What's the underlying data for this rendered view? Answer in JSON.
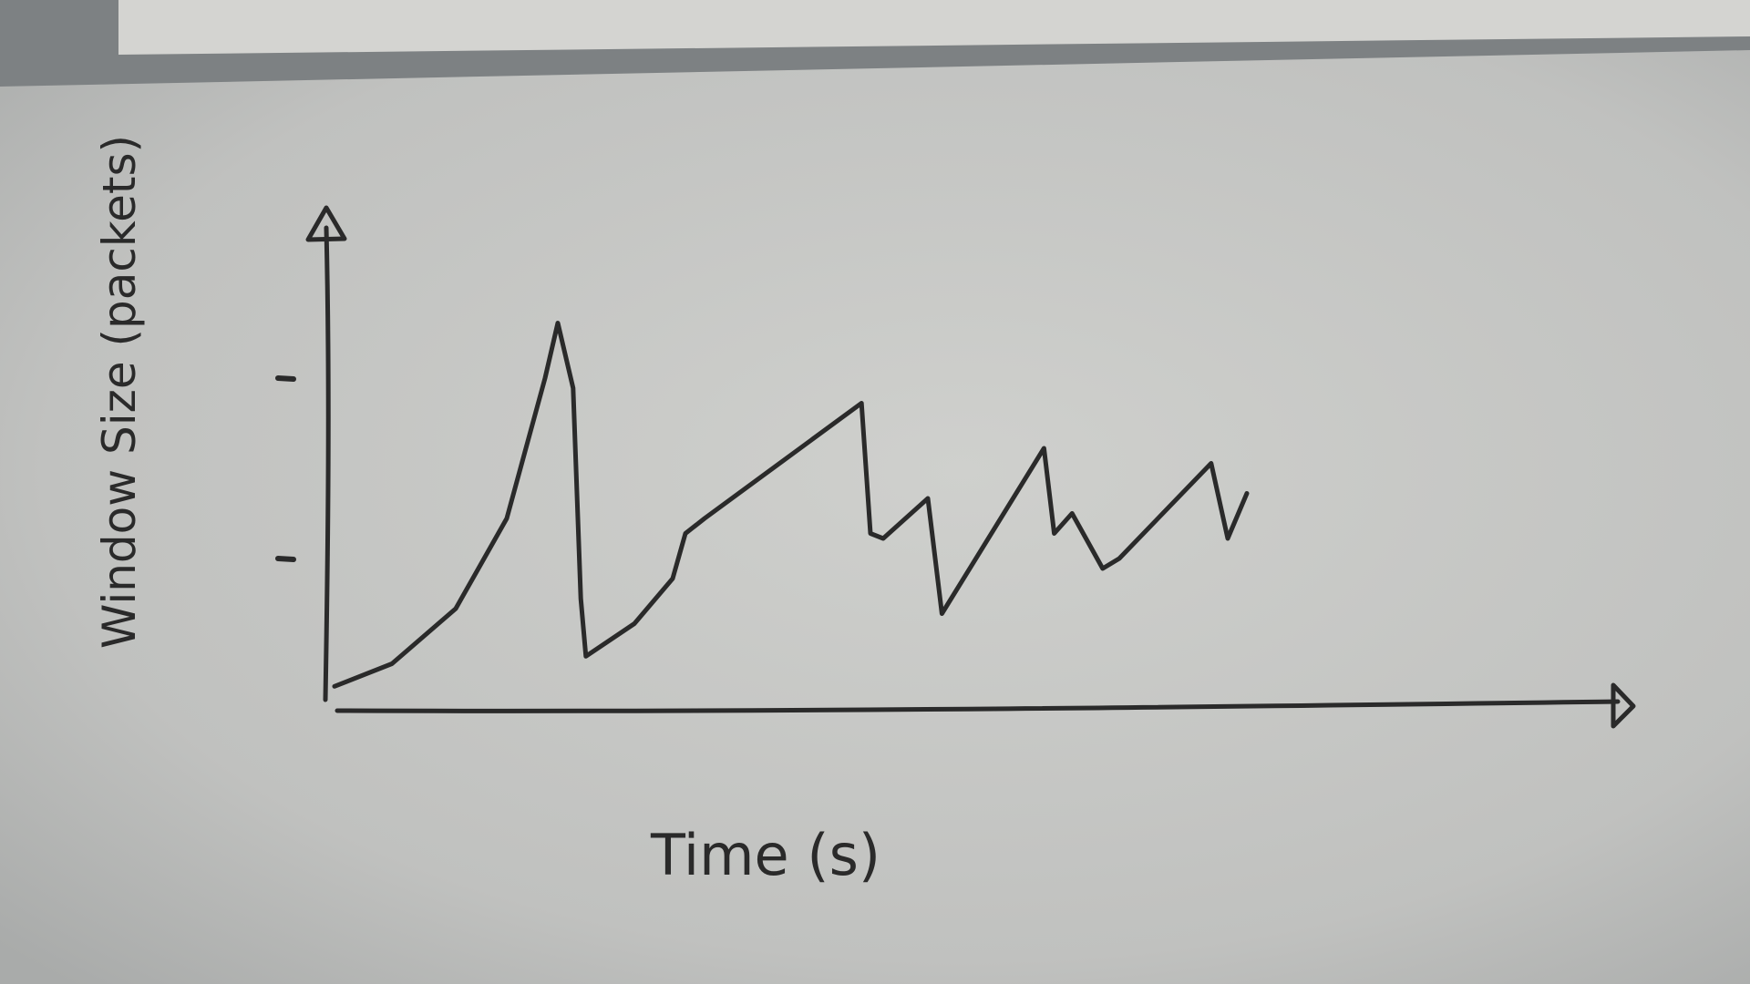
{
  "chart_data": {
    "type": "line",
    "title": "",
    "xlabel": "Time (s)",
    "ylabel": "Window Size (packets)",
    "xlim": [
      0,
      100
    ],
    "ylim": [
      0,
      100
    ],
    "grid": false,
    "legend": "none",
    "y_ticks": [
      {
        "value": 30,
        "label": ""
      },
      {
        "value": 66,
        "label": ""
      }
    ],
    "series": [
      {
        "name": "",
        "style": "hand-drawn",
        "color": "#2a2a2a",
        "x": [
          0.5,
          5,
          10,
          14,
          17,
          18,
          19.2,
          19.8,
          20.2,
          24,
          27,
          28,
          29.5,
          41.8,
          42.5,
          43.5,
          47,
          48.1,
          56.1,
          56.9,
          58.3,
          60.7,
          62,
          69.2,
          70.5,
          72
        ],
        "y": [
          4.5,
          9,
          20,
          38,
          66,
          77,
          64,
          22,
          10.5,
          17,
          26,
          35,
          38,
          61,
          35,
          34,
          42,
          19,
          52,
          35,
          39,
          28,
          30,
          49,
          34,
          43
        ]
      }
    ]
  },
  "colors": {
    "paper": "#c4c5c3",
    "ink": "#2a2a2a",
    "background": "#7d8183"
  }
}
